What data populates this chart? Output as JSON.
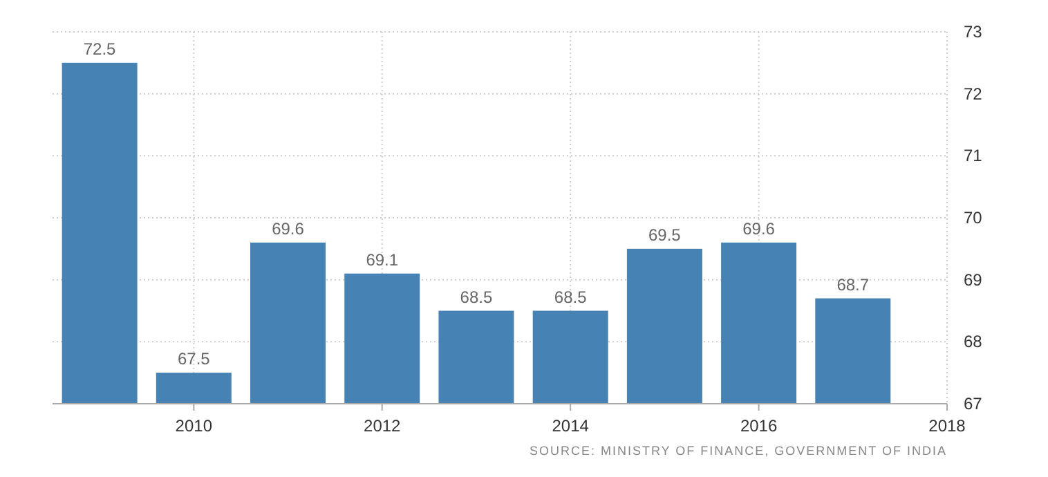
{
  "chart_data": {
    "type": "bar",
    "x": [
      2009,
      2010,
      2011,
      2012,
      2013,
      2014,
      2015,
      2016,
      2017
    ],
    "values": [
      72.5,
      67.5,
      69.6,
      69.1,
      68.5,
      68.5,
      69.5,
      69.6,
      68.7
    ],
    "color": "#4682b4",
    "xlim": [
      2008.5,
      2018
    ],
    "xticks": [
      2010,
      2012,
      2014,
      2016,
      2018
    ],
    "ylim": [
      67,
      73
    ],
    "yticks": [
      67,
      68,
      69,
      70,
      71,
      72,
      73
    ],
    "grid": true,
    "data_labels": true,
    "annotations": [
      "SOURCE: MINISTRY OF FINANCE, GOVERNMENT OF INDIA"
    ]
  }
}
